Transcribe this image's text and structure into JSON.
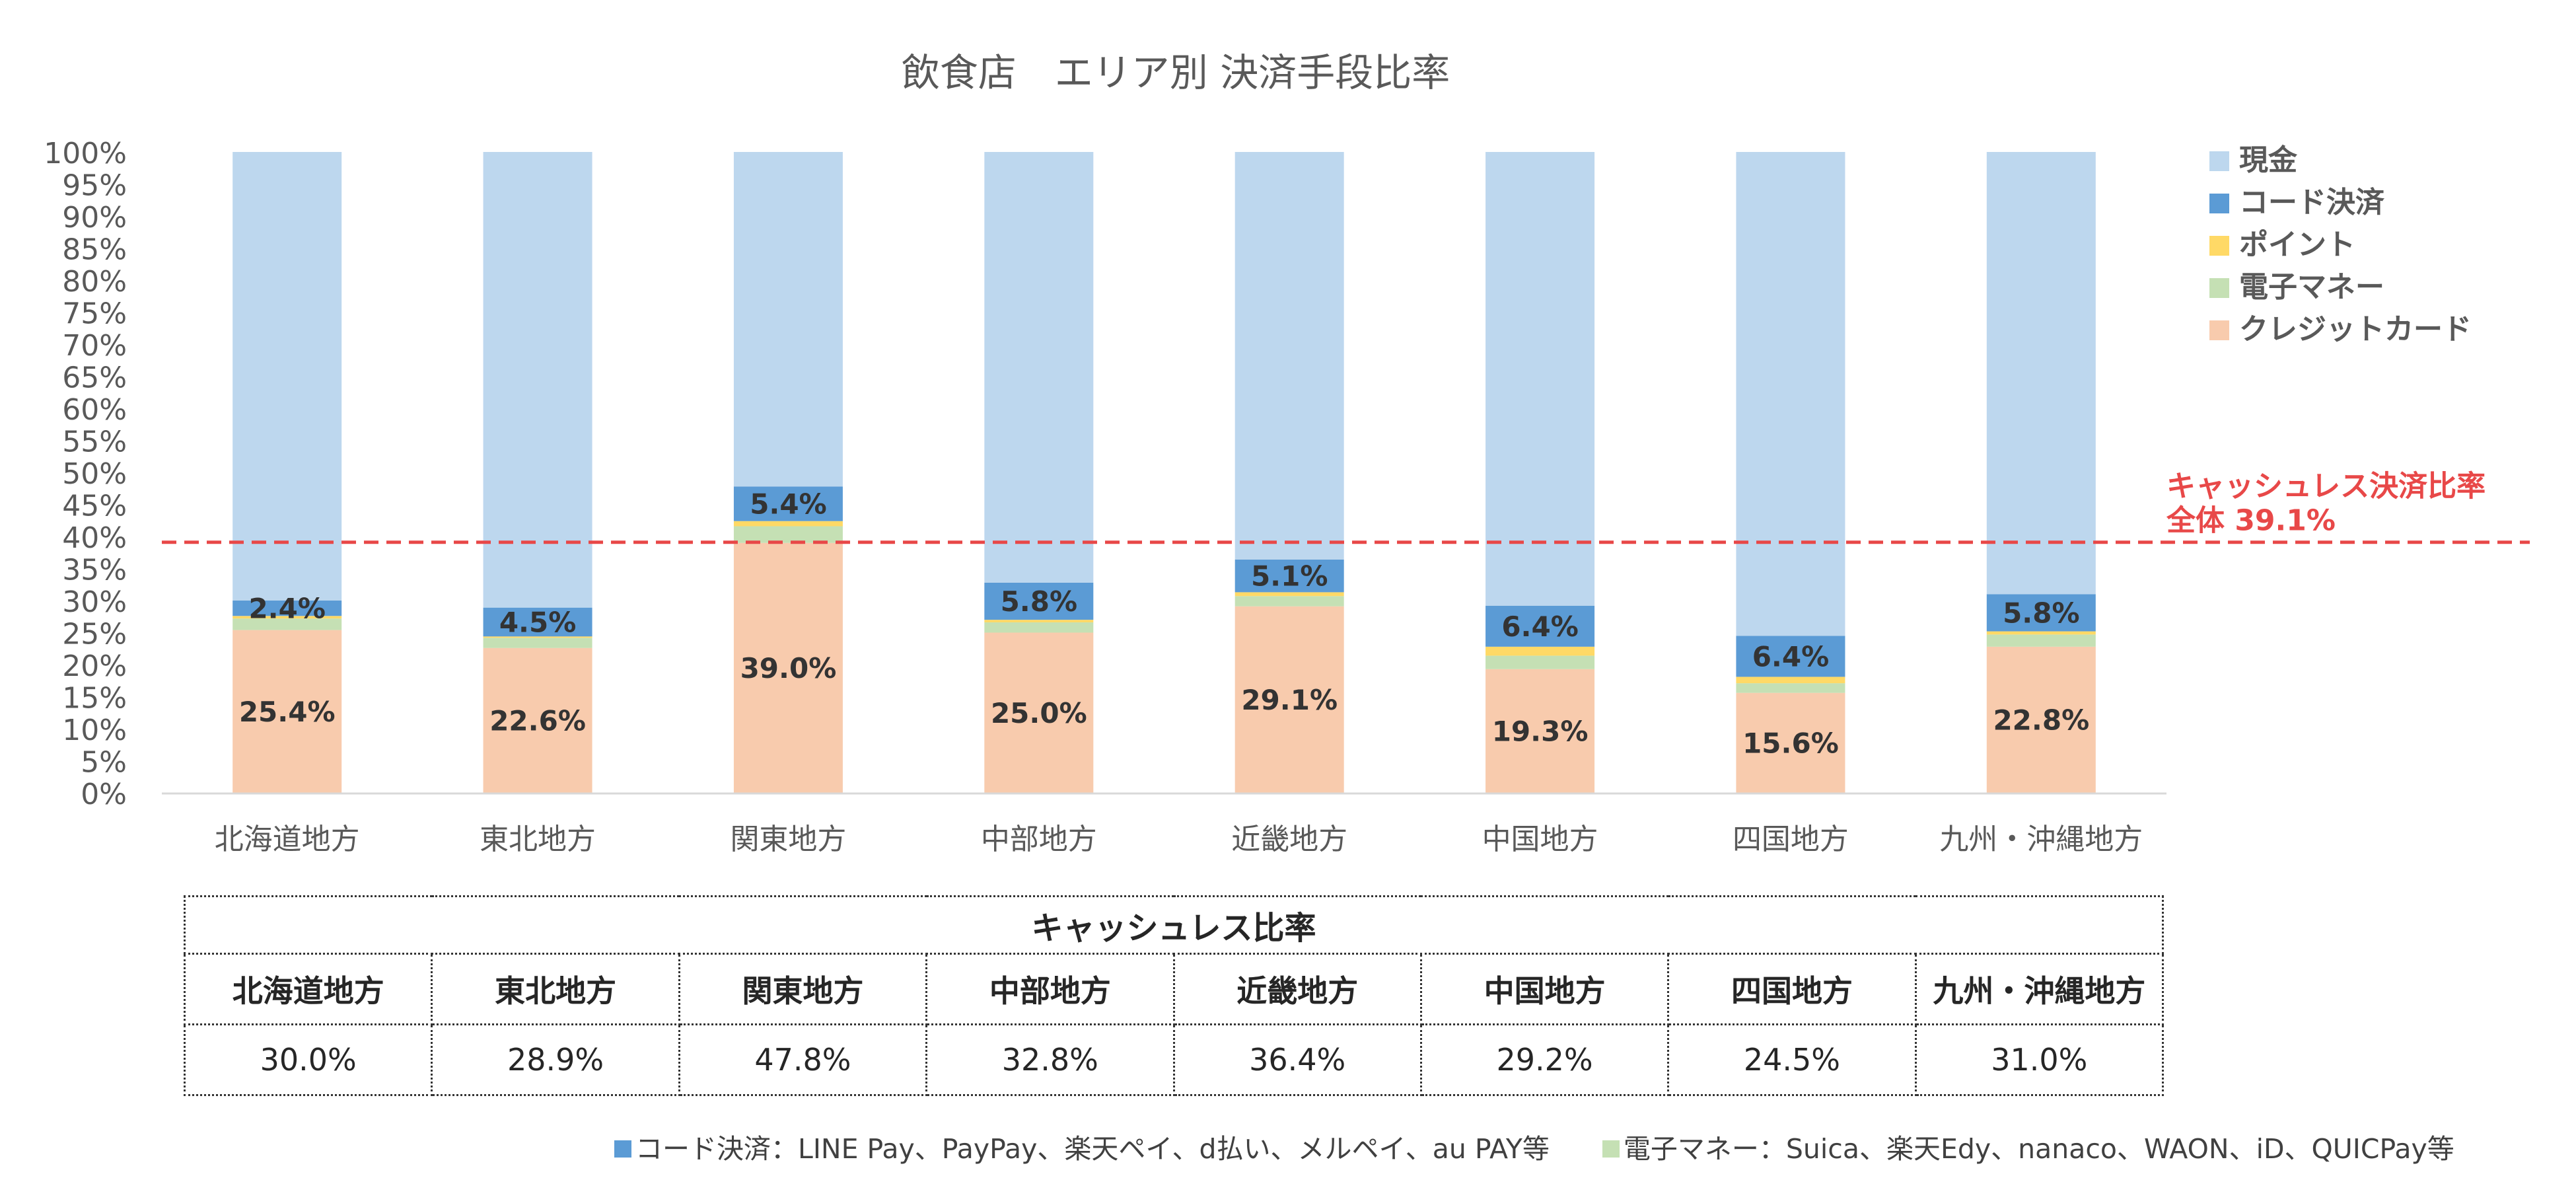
{
  "chart_data": {
    "type": "bar",
    "stacked": true,
    "title": "飲食店　エリア別 決済手段比率",
    "categories": [
      "北海道地方",
      "東北地方",
      "関東地方",
      "中部地方",
      "近畿地方",
      "中国地方",
      "四国地方",
      "九州・沖縄地方"
    ],
    "series": [
      {
        "name": "クレジットカード",
        "color": "#f8cbad",
        "values": [
          25.4,
          22.6,
          39.0,
          25.0,
          29.1,
          19.3,
          15.6,
          22.8
        ],
        "labels": [
          "25.4%",
          "22.6%",
          "39.0%",
          "25.0%",
          "29.1%",
          "19.3%",
          "15.6%",
          "22.8%"
        ]
      },
      {
        "name": "電子マネー",
        "color": "#c5e0b4",
        "values": [
          1.8,
          1.6,
          2.6,
          1.6,
          1.6,
          2.1,
          1.5,
          1.9
        ],
        "labels": []
      },
      {
        "name": "ポイント",
        "color": "#ffd966",
        "values": [
          0.4,
          0.2,
          0.8,
          0.4,
          0.6,
          1.4,
          1.0,
          0.5
        ],
        "labels": []
      },
      {
        "name": "コード決済",
        "color": "#5b9bd5",
        "values": [
          2.4,
          4.5,
          5.4,
          5.8,
          5.1,
          6.4,
          6.4,
          5.8
        ],
        "labels": [
          "2.4%",
          "4.5%",
          "5.4%",
          "5.8%",
          "5.1%",
          "6.4%",
          "6.4%",
          "5.8%"
        ]
      },
      {
        "name": "現金",
        "color": "#bdd7ee",
        "values": [
          70.0,
          71.1,
          52.2,
          67.2,
          63.6,
          70.8,
          75.5,
          69.0
        ],
        "labels": []
      }
    ],
    "legend_order": [
      "現金",
      "コード決済",
      "ポイント",
      "電子マネー",
      "クレジットカード"
    ],
    "legend_position": "right",
    "ylim": [
      0,
      100
    ],
    "yticks": [
      0,
      5,
      10,
      15,
      20,
      25,
      30,
      35,
      40,
      45,
      50,
      55,
      60,
      65,
      70,
      75,
      80,
      85,
      90,
      95,
      100
    ],
    "ytick_suffix": "%",
    "reference_line": {
      "value": 39.1,
      "color": "#e84848",
      "label_line1": "キャッシュレス決済比率",
      "label_line2": "全体 39.1%"
    }
  },
  "table": {
    "title": "キャッシュレス比率",
    "headers": [
      "北海道地方",
      "東北地方",
      "関東地方",
      "中部地方",
      "近畿地方",
      "中国地方",
      "四国地方",
      "九州・沖縄地方"
    ],
    "values": [
      "30.0%",
      "28.9%",
      "47.8%",
      "32.8%",
      "36.4%",
      "29.2%",
      "24.5%",
      "31.0%"
    ]
  },
  "footnote": {
    "code": "コード決済：LINE Pay、PayPay、楽天ペイ、d払い、メルペイ、au PAY等",
    "emoney": "電子マネー：Suica、楽天Edy、nanaco、WAON、iD、QUICPay等",
    "code_color": "#5b9bd5",
    "emoney_color": "#c5e0b4"
  }
}
